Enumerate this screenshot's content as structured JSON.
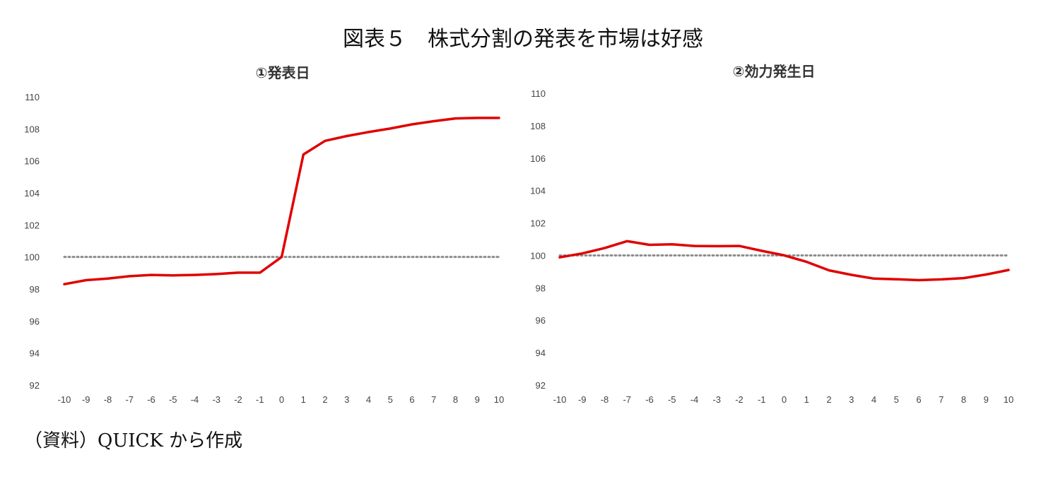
{
  "figure": {
    "title": "図表５　株式分割の発表を市場は好感",
    "source": "（資料）QUICK から作成"
  },
  "chart_data": [
    {
      "type": "line",
      "title": "①発表日",
      "x": [
        -10,
        -9,
        -8,
        -7,
        -6,
        -5,
        -4,
        -3,
        -2,
        -1,
        0,
        1,
        2,
        3,
        4,
        5,
        6,
        7,
        8,
        9,
        10
      ],
      "series": [
        {
          "values": [
            98.3,
            98.55,
            98.65,
            98.8,
            98.88,
            98.85,
            98.88,
            98.93,
            99.02,
            99.02,
            100.0,
            106.4,
            107.25,
            107.55,
            107.8,
            108.02,
            108.28,
            108.48,
            108.65,
            108.68,
            108.68
          ],
          "color": "#e00000"
        }
      ],
      "reference_line": {
        "y": 100,
        "style": "dotted",
        "color": "#8c8c8c"
      },
      "ylim": [
        92,
        110
      ],
      "yticks": [
        92,
        94,
        96,
        98,
        100,
        102,
        104,
        106,
        108,
        110
      ],
      "grid": false
    },
    {
      "type": "line",
      "title": "②効力発生日",
      "x": [
        -10,
        -9,
        -8,
        -7,
        -6,
        -5,
        -4,
        -3,
        -2,
        -1,
        0,
        1,
        2,
        3,
        4,
        5,
        6,
        7,
        8,
        9,
        10
      ],
      "series": [
        {
          "values": [
            99.88,
            100.12,
            100.45,
            100.88,
            100.65,
            100.68,
            100.58,
            100.57,
            100.58,
            100.28,
            100.0,
            99.6,
            99.08,
            98.8,
            98.57,
            98.53,
            98.47,
            98.52,
            98.6,
            98.82,
            99.1
          ],
          "color": "#e00000"
        }
      ],
      "reference_line": {
        "y": 100,
        "style": "dotted",
        "color": "#8c8c8c"
      },
      "ylim": [
        92,
        110
      ],
      "yticks": [
        92,
        94,
        96,
        98,
        100,
        102,
        104,
        106,
        108,
        110
      ],
      "grid": false
    }
  ]
}
